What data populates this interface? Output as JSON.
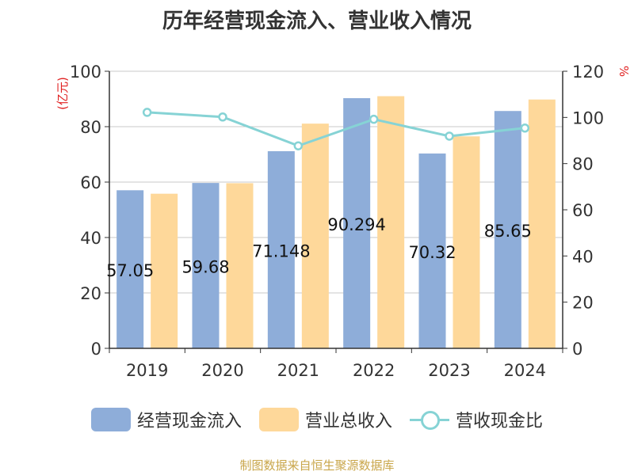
{
  "title": "历年经营现金流入、营业收入情况",
  "source": "制图数据来自恒生聚源数据库",
  "chart_data": {
    "type": "bar",
    "categories": [
      "2019",
      "2020",
      "2021",
      "2022",
      "2023",
      "2024"
    ],
    "series": [
      {
        "name": "经营现金流入",
        "axis": "left",
        "color": "#8eadd9",
        "values": [
          57.052,
          59.684,
          71.148,
          90.294,
          70.32,
          85.652
        ]
      },
      {
        "name": "营业总收入",
        "axis": "left",
        "color": "#fed89a",
        "values": [
          55.8,
          59.6,
          81.1,
          91.0,
          76.5,
          89.8
        ]
      },
      {
        "name": "营收现金比",
        "axis": "right",
        "type": "line",
        "color": "#86d3d5",
        "values": [
          102.2,
          100.2,
          87.7,
          99.2,
          91.9,
          95.4
        ]
      }
    ],
    "data_labels": [
      "57.05",
      "59.68",
      "71.148",
      "90.294",
      "70.32",
      "85.65"
    ],
    "ylabel_left": "(亿元)",
    "ylabel_right": "%",
    "ylim_left": [
      0,
      100
    ],
    "ylim_right": [
      0,
      120
    ],
    "yticks_left": [
      0,
      20,
      40,
      60,
      80,
      100
    ],
    "yticks_right": [
      0,
      20,
      40,
      60,
      80,
      100,
      120
    ],
    "grid": true,
    "legend": "bottom-center"
  }
}
